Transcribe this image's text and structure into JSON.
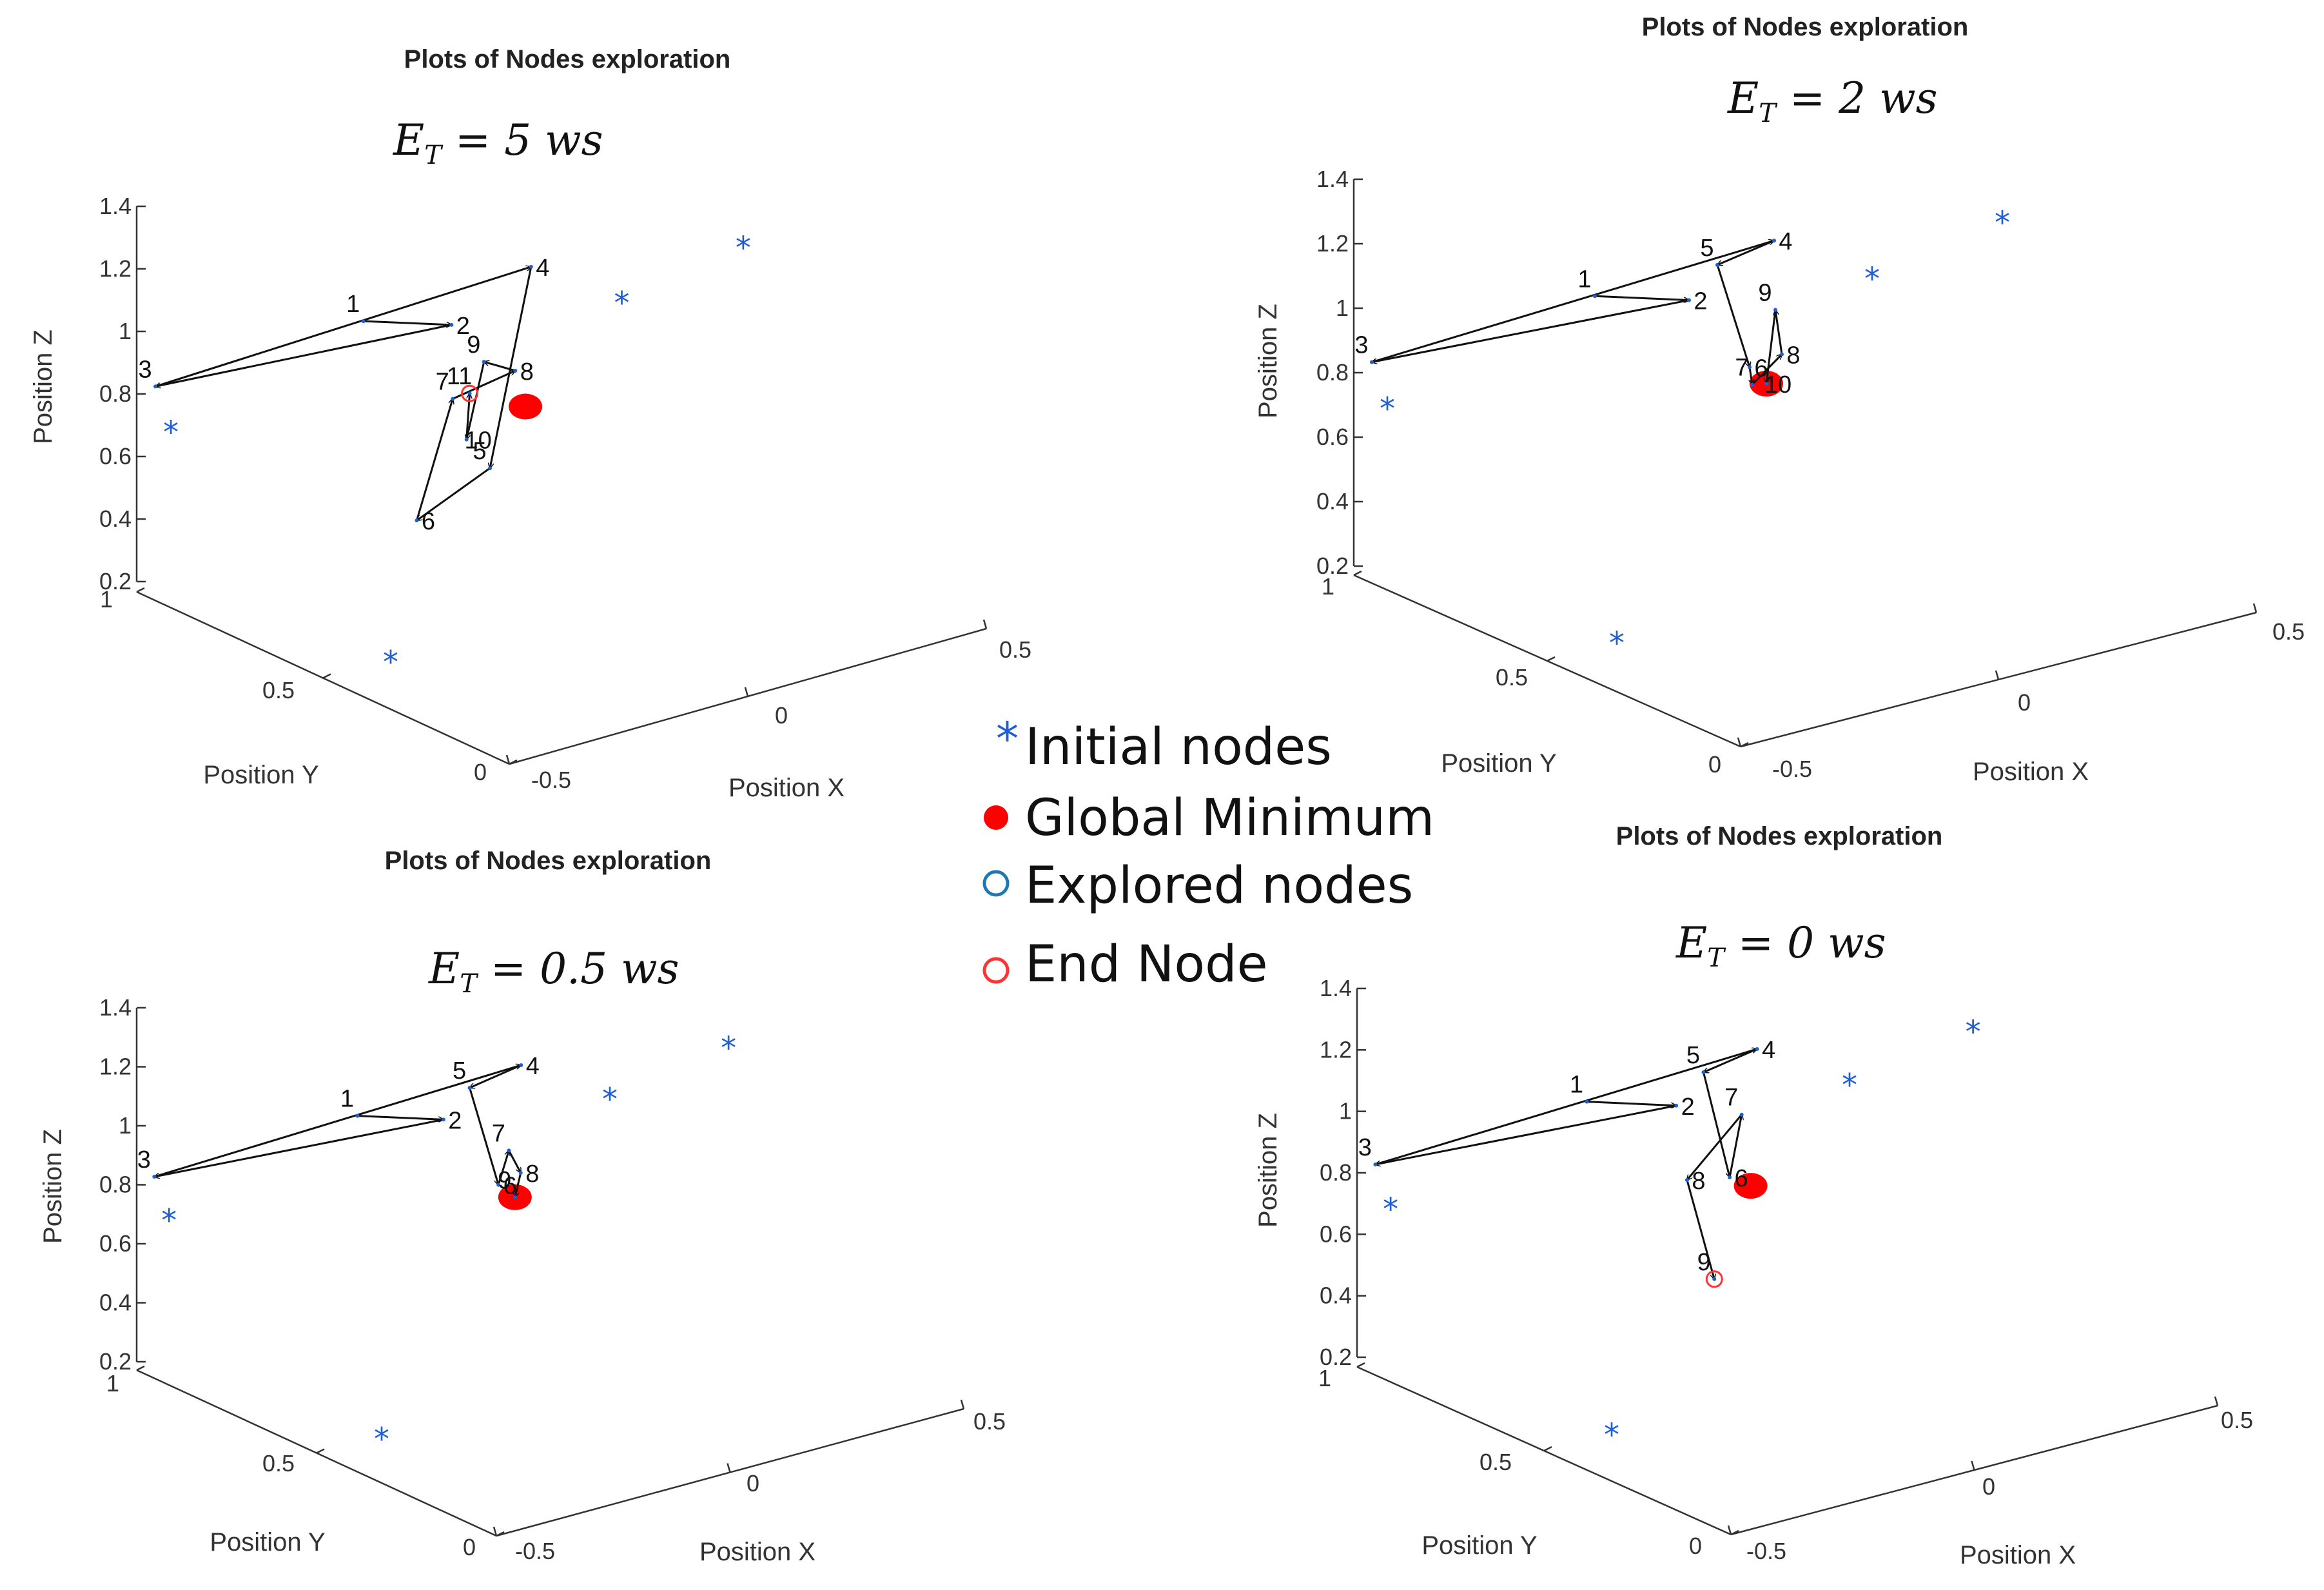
{
  "legend": {
    "items": [
      {
        "label": "Initial nodes",
        "marker": "star",
        "color": "#1f5fd6"
      },
      {
        "label": "Global Minimum",
        "marker": "filled-circle",
        "color": "#ff0000"
      },
      {
        "label": "Explored nodes",
        "marker": "open-circle",
        "color": "#1f77b4"
      },
      {
        "label": "End Node",
        "marker": "open-circle",
        "color": "#ff3333"
      }
    ]
  },
  "chart_data": [
    {
      "type": "scatter3d-path",
      "title": "Plots of Nodes exploration",
      "energy_label": {
        "main": "E",
        "sub": "T",
        "rest": " = 5 ws"
      },
      "xlabel": "Position X",
      "ylabel": "Position Y",
      "zlabel": "Position Z",
      "xticks": [
        "-0.5",
        "0",
        "0.5"
      ],
      "yticks": [
        "0",
        "0.5",
        "1"
      ],
      "zticks": [
        "0.2",
        "0.4",
        "0.6",
        "0.8",
        "1",
        "1.2",
        "1.4"
      ],
      "zlim": [
        0.2,
        1.4
      ],
      "initial_nodes": [
        {
          "x": -0.53,
          "y": 0.28,
          "z": 0.4
        },
        {
          "x": -0.6,
          "y": 0.78,
          "z": 0.9
        },
        {
          "x": 0.22,
          "y": 0.62,
          "z": 1.05
        },
        {
          "x": 0.42,
          "y": 0.55,
          "z": 1.18
        }
      ],
      "global_minimum": {
        "x": -0.06,
        "y": 0.52,
        "z": 0.88
      },
      "explored_path": [
        {
          "label": "1",
          "x": -0.22,
          "y": 0.75,
          "z": 1.1
        },
        {
          "label": "2",
          "x": -0.09,
          "y": 0.68,
          "z": 1.07
        },
        {
          "label": "3",
          "x": -0.57,
          "y": 0.86,
          "z": 0.98
        },
        {
          "label": "4",
          "x": 0.03,
          "y": 0.62,
          "z": 1.24
        },
        {
          "label": "5",
          "x": -0.15,
          "y": 0.5,
          "z": 0.73
        },
        {
          "label": "6",
          "x": -0.28,
          "y": 0.53,
          "z": 0.6
        },
        {
          "label": "7",
          "x": -0.15,
          "y": 0.6,
          "z": 0.9
        },
        {
          "label": "8",
          "x": -0.05,
          "y": 0.56,
          "z": 0.97
        },
        {
          "label": "9",
          "x": -0.1,
          "y": 0.58,
          "z": 1.01
        },
        {
          "label": "10",
          "x": -0.16,
          "y": 0.55,
          "z": 0.8
        },
        {
          "label": "11",
          "x": -0.13,
          "y": 0.58,
          "z": 0.92
        }
      ],
      "end_node": {
        "x": -0.13,
        "y": 0.58,
        "z": 0.92
      }
    },
    {
      "type": "scatter3d-path",
      "title": "Plots of Nodes exploration",
      "energy_label": {
        "main": "E",
        "sub": "T",
        "rest": " = 2 ws"
      },
      "xlabel": "Position X",
      "ylabel": "Position Y",
      "zlabel": "Position Z",
      "xticks": [
        "-0.5",
        "0",
        "0.5"
      ],
      "yticks": [
        "0",
        "0.5",
        "1"
      ],
      "zticks": [
        "0.2",
        "0.4",
        "0.6",
        "0.8",
        "1",
        "1.2",
        "1.4"
      ],
      "zlim": [
        0.2,
        1.4
      ],
      "initial_nodes": [
        {
          "x": -0.53,
          "y": 0.28,
          "z": 0.4
        },
        {
          "x": -0.6,
          "y": 0.78,
          "z": 0.9
        },
        {
          "x": 0.22,
          "y": 0.62,
          "z": 1.05
        },
        {
          "x": 0.42,
          "y": 0.55,
          "z": 1.18
        }
      ],
      "global_minimum": {
        "x": -0.06,
        "y": 0.52,
        "z": 0.88
      },
      "explored_path": [
        {
          "label": "1",
          "x": -0.22,
          "y": 0.75,
          "z": 1.1
        },
        {
          "label": "2",
          "x": -0.09,
          "y": 0.68,
          "z": 1.07
        },
        {
          "label": "3",
          "x": -0.57,
          "y": 0.86,
          "z": 0.98
        },
        {
          "label": "4",
          "x": 0.03,
          "y": 0.62,
          "z": 1.24
        },
        {
          "label": "5",
          "x": -0.08,
          "y": 0.62,
          "z": 1.21
        },
        {
          "label": "6",
          "x": -0.07,
          "y": 0.55,
          "z": 0.92
        },
        {
          "label": "7",
          "x": -0.08,
          "y": 0.53,
          "z": 0.88
        },
        {
          "label": "8",
          "x": -0.03,
          "y": 0.52,
          "z": 0.96
        },
        {
          "label": "9",
          "x": -0.02,
          "y": 0.55,
          "z": 1.08
        },
        {
          "label": "10",
          "x": -0.06,
          "y": 0.52,
          "z": 0.88
        }
      ],
      "end_node": null
    },
    {
      "type": "scatter3d-path",
      "title": "Plots of Nodes exploration",
      "energy_label": {
        "main": "E",
        "sub": "T",
        "rest": " = 0.5 ws"
      },
      "xlabel": "Position X",
      "ylabel": "Position Y",
      "zlabel": "Position Z",
      "xticks": [
        "-0.5",
        "0",
        "0.5"
      ],
      "yticks": [
        "0",
        "0.5",
        "1"
      ],
      "zticks": [
        "0.2",
        "0.4",
        "0.6",
        "0.8",
        "1",
        "1.2",
        "1.4"
      ],
      "zlim": [
        0.2,
        1.4
      ],
      "initial_nodes": [
        {
          "x": -0.53,
          "y": 0.28,
          "z": 0.4
        },
        {
          "x": -0.6,
          "y": 0.78,
          "z": 0.9
        },
        {
          "x": 0.22,
          "y": 0.62,
          "z": 1.05
        },
        {
          "x": 0.42,
          "y": 0.55,
          "z": 1.18
        }
      ],
      "global_minimum": {
        "x": -0.06,
        "y": 0.52,
        "z": 0.88
      },
      "explored_path": [
        {
          "label": "1",
          "x": -0.22,
          "y": 0.75,
          "z": 1.1
        },
        {
          "label": "2",
          "x": -0.09,
          "y": 0.68,
          "z": 1.07
        },
        {
          "label": "3",
          "x": -0.57,
          "y": 0.86,
          "z": 0.98
        },
        {
          "label": "4",
          "x": 0.03,
          "y": 0.62,
          "z": 1.24
        },
        {
          "label": "5",
          "x": -0.08,
          "y": 0.62,
          "z": 1.21
        },
        {
          "label": "6",
          "x": -0.08,
          "y": 0.54,
          "z": 0.92
        },
        {
          "label": "7",
          "x": -0.05,
          "y": 0.55,
          "z": 1.02
        },
        {
          "label": "8",
          "x": -0.04,
          "y": 0.53,
          "z": 0.95
        },
        {
          "label": "9",
          "x": -0.06,
          "y": 0.52,
          "z": 0.88
        }
      ],
      "end_node": null
    },
    {
      "type": "scatter3d-path",
      "title": "Plots of Nodes exploration",
      "energy_label": {
        "main": "E",
        "sub": "T",
        "rest": " = 0 ws"
      },
      "xlabel": "Position X",
      "ylabel": "Position Y",
      "zlabel": "Position Z",
      "xticks": [
        "-0.5",
        "0",
        "0.5"
      ],
      "yticks": [
        "0",
        "0.5",
        "1"
      ],
      "zticks": [
        "0.2",
        "0.4",
        "0.6",
        "0.8",
        "1",
        "1.2",
        "1.4"
      ],
      "zlim": [
        0.2,
        1.4
      ],
      "initial_nodes": [
        {
          "x": -0.53,
          "y": 0.28,
          "z": 0.4
        },
        {
          "x": -0.6,
          "y": 0.78,
          "z": 0.9
        },
        {
          "x": 0.22,
          "y": 0.62,
          "z": 1.05
        },
        {
          "x": 0.42,
          "y": 0.55,
          "z": 1.18
        }
      ],
      "global_minimum": {
        "x": -0.06,
        "y": 0.52,
        "z": 0.88
      },
      "explored_path": [
        {
          "label": "1",
          "x": -0.22,
          "y": 0.75,
          "z": 1.1
        },
        {
          "label": "2",
          "x": -0.09,
          "y": 0.68,
          "z": 1.07
        },
        {
          "label": "3",
          "x": -0.57,
          "y": 0.86,
          "z": 0.98
        },
        {
          "label": "4",
          "x": 0.03,
          "y": 0.62,
          "z": 1.24
        },
        {
          "label": "5",
          "x": -0.08,
          "y": 0.62,
          "z": 1.21
        },
        {
          "label": "6",
          "x": -0.08,
          "y": 0.55,
          "z": 0.9
        },
        {
          "label": "7",
          "x": -0.04,
          "y": 0.57,
          "z": 1.08
        },
        {
          "label": "8",
          "x": -0.16,
          "y": 0.56,
          "z": 0.92
        },
        {
          "label": "9",
          "x": -0.15,
          "y": 0.5,
          "z": 0.62
        }
      ],
      "end_node": {
        "x": -0.15,
        "y": 0.5,
        "z": 0.62
      }
    }
  ]
}
